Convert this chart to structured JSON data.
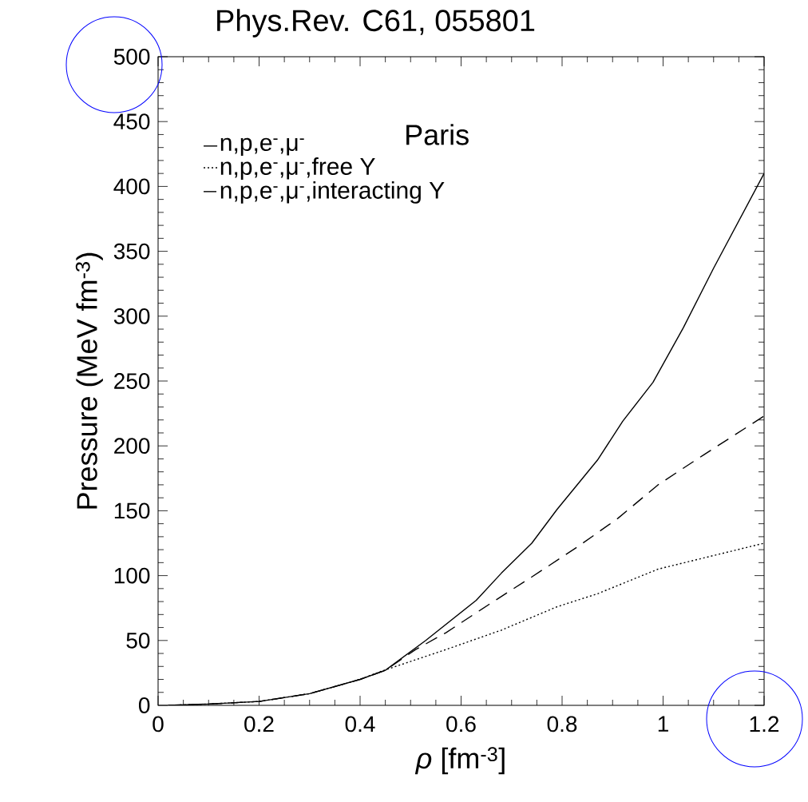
{
  "chart_data": {
    "type": "line",
    "title": "Phys.Rev. C61, 055801",
    "xlabel": "*ρ*  [fm$^{-3}$]",
    "ylabel": "Pressure (MeV fm$^{-3}$)",
    "annotations": [
      "Paris"
    ],
    "xlim": [
      0,
      1.2
    ],
    "ylim": [
      0,
      500
    ],
    "xticks": [
      0,
      0.2,
      0.4,
      0.6,
      0.8,
      1,
      1.2
    ],
    "yticks": [
      0,
      50,
      100,
      150,
      200,
      250,
      300,
      350,
      400,
      450,
      500
    ],
    "grid": false,
    "legend": "top left",
    "marker": "none",
    "series": [
      {
        "name": "n,p,e$^{-}$,μ$^{-}$",
        "color": "#000000",
        "line_style": "solid",
        "x": [
          0.02,
          0.1,
          0.2,
          0.3,
          0.4,
          0.45,
          0.53,
          0.63,
          0.68,
          0.74,
          0.79,
          0.87,
          0.92,
          0.98,
          1.04,
          1.1,
          1.2
        ],
        "values": [
          0,
          1,
          3,
          9,
          20,
          27,
          50,
          81,
          102,
          125,
          151,
          189,
          219,
          249,
          291,
          337,
          410
        ]
      },
      {
        "name": "n,p,e$^{-}$,μ$^{-}$,free Y",
        "color": "#000000",
        "line_style": "dotted",
        "x": [
          0.02,
          0.1,
          0.2,
          0.3,
          0.4,
          0.44,
          0.57,
          0.68,
          0.79,
          0.87,
          0.99,
          1.2
        ],
        "values": [
          0,
          1,
          3,
          9,
          20,
          26,
          43,
          58,
          76,
          86,
          105,
          125
        ]
      },
      {
        "name": "n,p,e$^{-}$,μ$^{-}$,interacting Y",
        "color": "#000000",
        "line_style": "dashed",
        "x": [
          0.02,
          0.1,
          0.2,
          0.3,
          0.4,
          0.45,
          0.51,
          0.57,
          0.66,
          0.74,
          0.83,
          0.91,
          0.99,
          1.08,
          1.2
        ],
        "values": [
          0,
          1,
          3,
          9,
          20,
          27,
          43,
          56,
          79,
          99,
          122,
          144,
          170,
          193,
          223
        ]
      }
    ]
  }
}
